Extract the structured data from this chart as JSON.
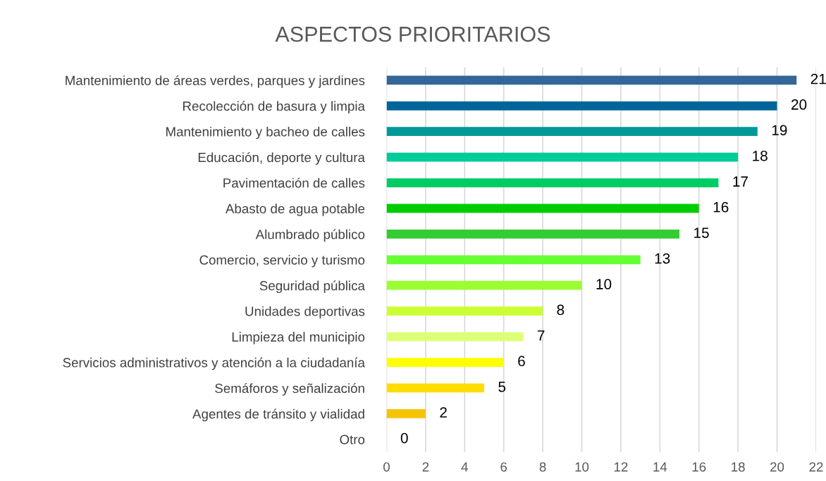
{
  "chart_data": {
    "type": "bar",
    "orientation": "horizontal",
    "title": "ASPECTOS PRIORITARIOS",
    "categories": [
      "Mantenimiento de áreas verdes, parques y jardines",
      "Recolección de basura y limpia",
      "Mantenimiento y bacheo de calles",
      "Educación, deporte y cultura",
      "Pavimentación de calles",
      "Abasto de agua potable",
      "Alumbrado público",
      "Comercio, servicio y turismo",
      "Seguridad pública",
      "Unidades deportivas",
      "Limpieza del municipio",
      "Servicios administrativos y atención a la ciudadanía",
      "Semáforos y señalización",
      "Agentes de tránsito y vialidad",
      "Otro"
    ],
    "values": [
      21,
      20,
      19,
      18,
      17,
      16,
      15,
      13,
      10,
      8,
      7,
      6,
      5,
      2,
      0
    ],
    "colors": [
      "#336699",
      "#006699",
      "#009999",
      "#00cc99",
      "#00cc66",
      "#00cc00",
      "#33cc33",
      "#66ff33",
      "#99ff33",
      "#ccff33",
      "#ddff77",
      "#ffff00",
      "#ffdd00",
      "#f5c400",
      "#cccccc"
    ],
    "xlim": [
      0,
      22
    ],
    "xticks": [
      0,
      2,
      4,
      6,
      8,
      10,
      12,
      14,
      16,
      18,
      20,
      22
    ],
    "grid": "x",
    "data_labels": true
  }
}
